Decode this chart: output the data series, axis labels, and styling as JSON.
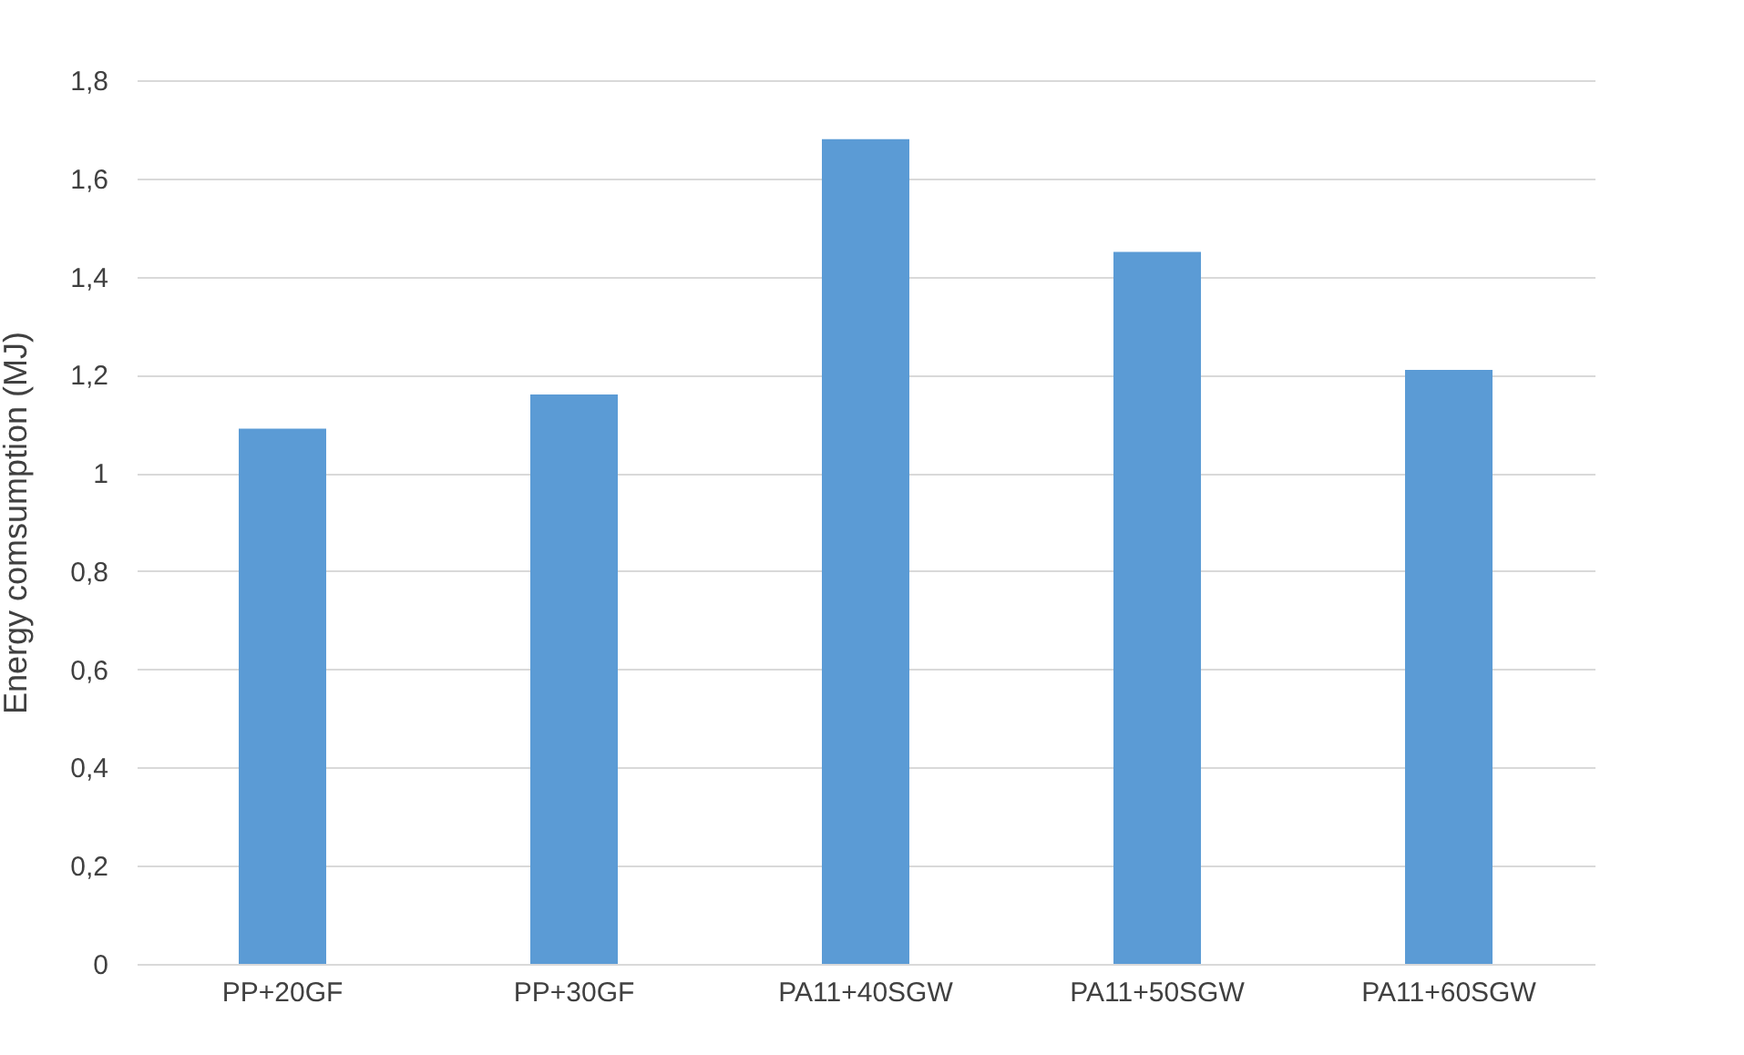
{
  "chart_data": {
    "type": "bar",
    "ylabel": "Energy comsumption (MJ)",
    "categories": [
      "PP+20GF",
      "PP+30GF",
      "PA11+40SGW",
      "PA11+50SGW",
      "PA11+60SGW"
    ],
    "values": [
      1.09,
      1.16,
      1.68,
      1.45,
      1.21
    ],
    "color": "#5b9bd5",
    "ylim": [
      0,
      1.8
    ],
    "yticks": [
      0,
      {
        "value": 0.2,
        "label": "0,2"
      },
      {
        "value": 0.4,
        "label": "0,4"
      },
      {
        "value": 0.6,
        "label": "0,6"
      },
      {
        "value": 0.8,
        "label": "0,8"
      },
      1,
      {
        "value": 1.2,
        "label": "1,2"
      },
      {
        "value": 1.4,
        "label": "1,4"
      },
      {
        "value": 1.6,
        "label": "1,6"
      },
      {
        "value": 1.8,
        "label": "1,8"
      }
    ],
    "grid": "y"
  }
}
